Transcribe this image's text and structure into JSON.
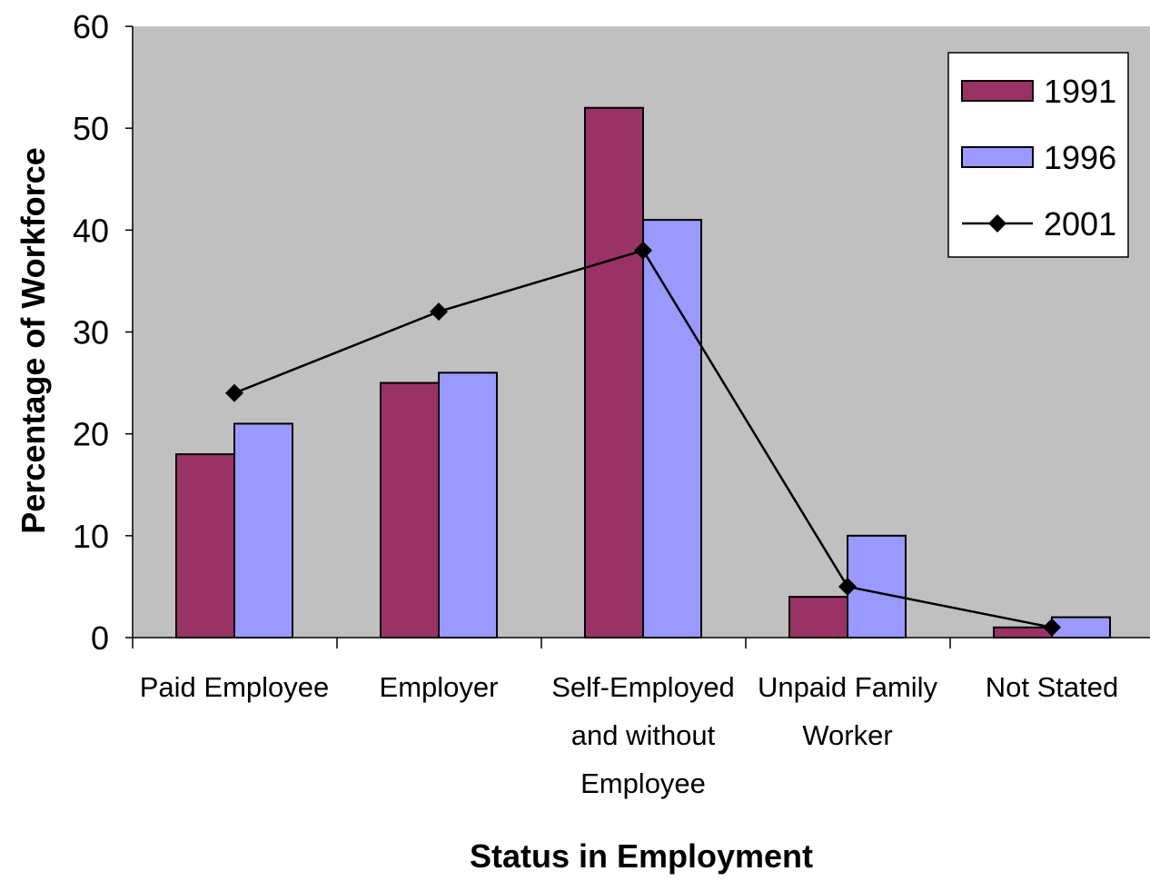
{
  "chart_data": {
    "type": "bar",
    "title": "",
    "xlabel": "Status in Employment",
    "ylabel": "Percentage of Workforce",
    "ylim": [
      0,
      60
    ],
    "yticks": [
      0,
      10,
      20,
      30,
      40,
      50,
      60
    ],
    "grid": false,
    "legend_position": "top-right",
    "categories": [
      [
        "Paid Employee"
      ],
      [
        "Employer"
      ],
      [
        "Self-Employed",
        "and without",
        "Employee"
      ],
      [
        "Unpaid Family",
        "Worker"
      ],
      [
        "Not Stated"
      ]
    ],
    "series": [
      {
        "name": "1991",
        "kind": "bar",
        "color": "#993366",
        "values": [
          18,
          25,
          52,
          4,
          1
        ]
      },
      {
        "name": "1996",
        "kind": "bar",
        "color": "#9999FF",
        "values": [
          21,
          26,
          41,
          10,
          2
        ]
      },
      {
        "name": "2001",
        "kind": "line",
        "color": "#000000",
        "marker": "diamond",
        "values": [
          24,
          32,
          38,
          5,
          1
        ]
      }
    ],
    "plot_background": "#C0C0C0"
  }
}
